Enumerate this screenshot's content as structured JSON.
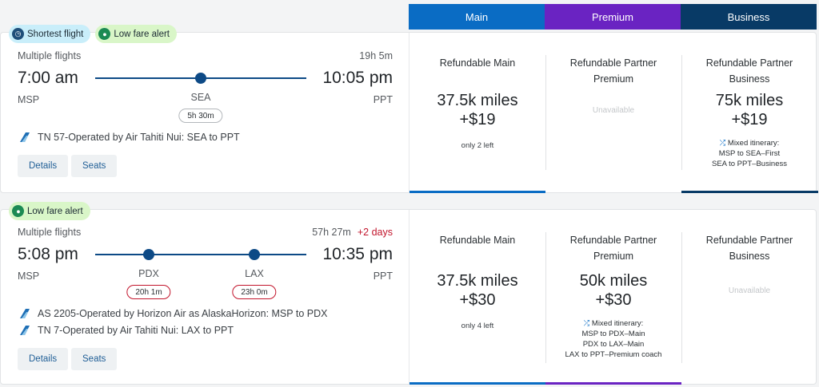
{
  "tabs": {
    "main": "Main",
    "premium": "Premium",
    "business": "Business"
  },
  "colors": {
    "main": "#0a6cc4",
    "premium": "#6a23c2",
    "business": "#083a66",
    "route": "#0d4a86",
    "alert_red": "#c2152c"
  },
  "flights": [
    {
      "badges": [
        "Shortest flight",
        "Low fare alert"
      ],
      "multiple": "Multiple flights",
      "duration": "19h 5m",
      "depart_time": "7:00 am",
      "arrive_time": "10:05 pm",
      "origin": "MSP",
      "destination": "PPT",
      "stops": [
        {
          "code": "SEA",
          "layover": "5h 30m"
        }
      ],
      "operated": [
        "TN 57-Operated by Air Tahiti Nui: SEA to PPT"
      ],
      "details_label": "Details",
      "seats_label": "Seats",
      "fares": [
        {
          "title": "Refundable Main",
          "miles": "37.5k miles",
          "tax": "+$19",
          "note": "only 2 left"
        },
        {
          "title": "Refundable Partner Premium",
          "unavailable": "Unavailable"
        },
        {
          "title": "Refundable Partner Business",
          "miles": "75k miles",
          "tax": "+$19",
          "mixed_title": "Mixed itinerary:",
          "mixed_lines": [
            "MSP to SEA–First",
            "SEA to PPT–Business"
          ]
        }
      ]
    },
    {
      "badges": [
        "Low fare alert"
      ],
      "multiple": "Multiple flights",
      "duration": "57h 27m",
      "plus_days": "+2 days",
      "depart_time": "5:08 pm",
      "arrive_time": "10:35 pm",
      "origin": "MSP",
      "destination": "PPT",
      "stops": [
        {
          "code": "PDX",
          "layover": "20h 1m"
        },
        {
          "code": "LAX",
          "layover": "23h 0m"
        }
      ],
      "operated": [
        "AS 2205-Operated by Horizon Air as AlaskaHorizon: MSP to PDX",
        "TN 7-Operated by Air Tahiti Nui: LAX to PPT"
      ],
      "details_label": "Details",
      "seats_label": "Seats",
      "fares": [
        {
          "title": "Refundable Main",
          "miles": "37.5k miles",
          "tax": "+$30",
          "note": "only 4 left"
        },
        {
          "title": "Refundable Partner Premium",
          "miles": "50k miles",
          "tax": "+$30",
          "mixed_title": "Mixed itinerary:",
          "mixed_lines": [
            "MSP to PDX–Main",
            "PDX to LAX–Main",
            "LAX to PPT–Premium coach"
          ]
        },
        {
          "title": "Refundable Partner Business",
          "unavailable": "Unavailable"
        }
      ]
    }
  ]
}
